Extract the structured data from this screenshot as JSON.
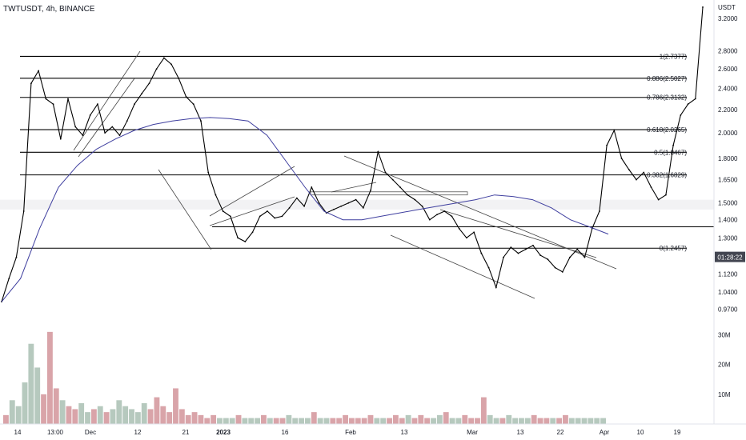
{
  "header": {
    "symbol_line": "TWTUSDT, 4h, BINANCE"
  },
  "price_axis": {
    "unit": "USDT",
    "ticks": [
      0.97,
      1.04,
      1.12,
      1.2,
      1.3,
      1.4,
      1.5,
      1.65,
      1.8,
      2.0,
      2.2,
      2.4,
      2.6,
      2.8,
      3.2
    ],
    "tick_labels": [
      "0.9700",
      "1.0400",
      "1.1200",
      "1.2000",
      "1.3000",
      "1.4000",
      "1.5000",
      "1.6500",
      "1.8000",
      "2.0000",
      "2.2000",
      "2.4000",
      "2.6000",
      "2.8000",
      "3.2000"
    ],
    "current_time_badge": "01:28:22"
  },
  "volume_axis": {
    "ticks": [
      10000000,
      20000000,
      30000000
    ],
    "tick_labels": [
      "10M",
      "20M",
      "30M"
    ]
  },
  "time_axis": {
    "labels": [
      "14",
      "13:00",
      "Dec",
      "12",
      "21",
      "2023",
      "16",
      "Feb",
      "13",
      "Mar",
      "13",
      "22",
      "Apr",
      "10",
      "19"
    ]
  },
  "fib_levels": [
    {
      "ratio": "1",
      "price": 2.7377,
      "label": "1(2.7377)"
    },
    {
      "ratio": "0.886",
      "price": 2.5027,
      "label": "0.886(2.5027)"
    },
    {
      "ratio": "0.786",
      "price": 2.3132,
      "label": "0.786(2.3132)"
    },
    {
      "ratio": "0.618",
      "price": 2.0265,
      "label": "0.618(2.0265)"
    },
    {
      "ratio": "0.5",
      "price": 1.8467,
      "label": "0.5(1.8467)"
    },
    {
      "ratio": "0.382",
      "price": 1.6829,
      "label": "0.382(1.6829)"
    },
    {
      "ratio": "0",
      "price": 1.2457,
      "label": "0(1.2457)"
    }
  ],
  "colors": {
    "price_line": "#000000",
    "moving_average": "#3f3f9f",
    "volume_up": "#b6c9be",
    "volume_down": "#d9a4a9",
    "axis_text": "#131722",
    "badge_bg": "#434651"
  },
  "chart_data": {
    "type": "line",
    "title": "TWTUSDT, 4h, BINANCE",
    "ylabel": "USDT",
    "ylim": [
      0.94,
      3.45
    ],
    "x_labels": [
      "14",
      "13:00",
      "Dec",
      "12",
      "21",
      "2023",
      "16",
      "Feb",
      "13",
      "Mar",
      "13",
      "22",
      "Apr",
      "10",
      "19"
    ],
    "series": [
      {
        "values": [
          1.0,
          1.1,
          1.2,
          1.45,
          2.45,
          2.58,
          2.3,
          2.25,
          1.95,
          2.3,
          2.05,
          1.98,
          2.15,
          2.25,
          2.0,
          2.05,
          1.98,
          2.1,
          2.25,
          2.35,
          2.45,
          2.6,
          2.72,
          2.65,
          2.5,
          2.32,
          2.25,
          2.1,
          1.7,
          1.55,
          1.45,
          1.42,
          1.3,
          1.28,
          1.33,
          1.42,
          1.45,
          1.41,
          1.42,
          1.47,
          1.53,
          1.48,
          1.6,
          1.5,
          1.44,
          1.46,
          1.48,
          1.5,
          1.52,
          1.47,
          1.58,
          1.85,
          1.7,
          1.65,
          1.6,
          1.55,
          1.52,
          1.48,
          1.4,
          1.43,
          1.45,
          1.42,
          1.35,
          1.3,
          1.33,
          1.22,
          1.15,
          1.06,
          1.2,
          1.25,
          1.22,
          1.24,
          1.26,
          1.21,
          1.19,
          1.15,
          1.13,
          1.2,
          1.24,
          1.2,
          1.35,
          1.45,
          1.9,
          2.02,
          1.8,
          1.72,
          1.65,
          1.7,
          1.6,
          1.52,
          1.55,
          1.9,
          2.15,
          2.25,
          2.3,
          3.35
        ]
      },
      {
        "values": [
          1.0,
          1.1,
          1.35,
          1.6,
          1.75,
          1.87,
          1.95,
          2.02,
          2.07,
          2.1,
          2.12,
          2.13,
          2.12,
          2.1,
          1.98,
          1.78,
          1.6,
          1.45,
          1.4,
          1.4,
          1.42,
          1.44,
          1.46,
          1.48,
          1.5,
          1.52,
          1.55,
          1.54,
          1.52,
          1.47,
          1.4,
          1.36,
          1.32
        ]
      }
    ],
    "volume": {
      "unit": "M",
      "values": [
        3,
        8,
        6,
        14,
        27,
        19,
        10,
        31,
        12,
        8,
        6,
        5,
        7,
        4,
        5,
        6,
        4,
        5,
        8,
        6,
        5,
        4,
        7,
        5,
        9,
        6,
        4,
        12,
        5,
        3,
        4,
        3,
        2,
        3,
        2,
        2,
        2,
        3,
        2,
        2,
        2,
        3,
        2,
        2,
        2,
        3,
        2,
        2,
        2,
        4,
        2,
        2,
        2,
        2,
        3,
        2,
        2,
        2,
        3,
        2,
        2,
        2,
        3,
        2,
        3,
        2,
        3,
        2,
        2,
        3,
        4,
        2,
        2,
        3,
        2,
        2,
        9,
        3,
        2,
        2,
        3,
        2,
        2,
        2,
        3,
        2,
        2,
        2,
        2,
        3,
        2,
        2,
        2,
        2,
        2,
        2
      ]
    }
  }
}
